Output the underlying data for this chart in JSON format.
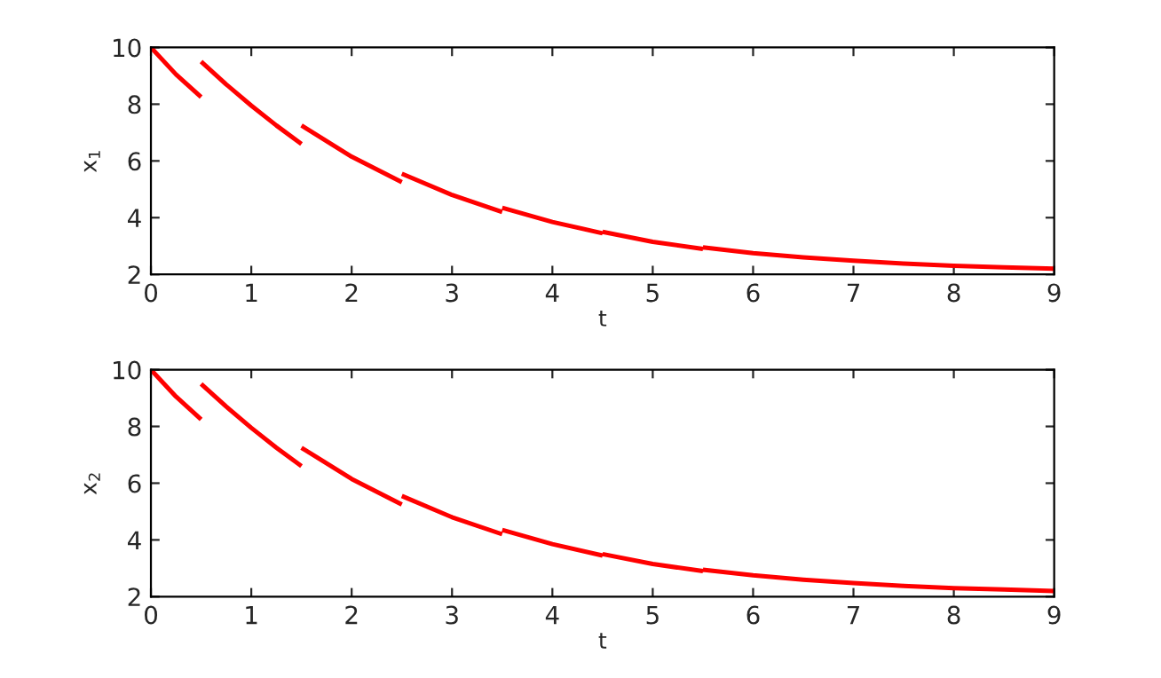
{
  "chart_data": [
    {
      "type": "line",
      "xlabel": "t",
      "ylabel": "x$_{1}$",
      "xlim": [
        0,
        9
      ],
      "xticks": [
        0,
        1,
        2,
        3,
        4,
        5,
        6,
        7,
        8,
        9
      ],
      "ylim": [
        2,
        10
      ],
      "yticks": [
        2,
        4,
        6,
        8,
        10
      ],
      "grid": false,
      "legend": false,
      "series": [
        {
          "color": "#ff0000",
          "x": [
            0,
            0.25,
            0.5,
            null,
            0.5,
            0.75,
            1.0,
            1.25,
            1.5,
            null,
            1.5,
            2.0,
            2.5,
            null,
            2.5,
            3.0,
            3.5,
            null,
            3.5,
            4.0,
            4.5,
            null,
            4.5,
            5.0,
            5.5,
            null,
            5.5,
            6.0,
            6.5,
            7.0,
            7.5,
            8.0,
            8.5,
            9.0
          ],
          "values": [
            10,
            9.05,
            8.25,
            null,
            9.5,
            8.7,
            7.95,
            7.25,
            6.6,
            null,
            7.25,
            6.15,
            5.25,
            null,
            5.55,
            4.8,
            4.2,
            null,
            4.35,
            3.85,
            3.45,
            null,
            3.5,
            3.15,
            2.9,
            null,
            2.95,
            2.75,
            2.6,
            2.48,
            2.38,
            2.3,
            2.25,
            2.2
          ]
        }
      ]
    },
    {
      "type": "line",
      "xlabel": "t",
      "ylabel": "x$_{2}$",
      "xlim": [
        0,
        9
      ],
      "xticks": [
        0,
        1,
        2,
        3,
        4,
        5,
        6,
        7,
        8,
        9
      ],
      "ylim": [
        2,
        10
      ],
      "yticks": [
        2,
        4,
        6,
        8,
        10
      ],
      "grid": false,
      "legend": false,
      "series": [
        {
          "color": "#ff0000",
          "x": [
            0,
            0.25,
            0.5,
            null,
            0.5,
            0.75,
            1.0,
            1.25,
            1.5,
            null,
            1.5,
            2.0,
            2.5,
            null,
            2.5,
            3.0,
            3.5,
            null,
            3.5,
            4.0,
            4.5,
            null,
            4.5,
            5.0,
            5.5,
            null,
            5.5,
            6.0,
            6.5,
            7.0,
            7.5,
            8.0,
            8.5,
            9.0
          ],
          "values": [
            10,
            9.05,
            8.25,
            null,
            9.5,
            8.7,
            7.95,
            7.25,
            6.6,
            null,
            7.25,
            6.15,
            5.25,
            null,
            5.55,
            4.8,
            4.2,
            null,
            4.35,
            3.85,
            3.45,
            null,
            3.5,
            3.15,
            2.9,
            null,
            2.95,
            2.75,
            2.6,
            2.48,
            2.38,
            2.3,
            2.25,
            2.2
          ]
        }
      ]
    }
  ]
}
